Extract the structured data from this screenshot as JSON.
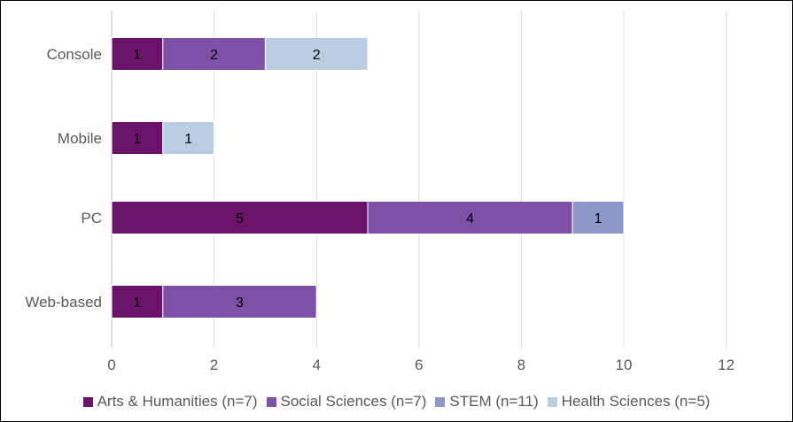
{
  "colors": {
    "Arts & Humanities (n=7)": "#6b126b",
    "Social Sciences (n=7)": "#7d52a6",
    "STEM (n=11)": "#8c96c8",
    "Health Sciences (n=5)": "#b9cde3"
  },
  "chart_data": {
    "type": "bar",
    "orientation": "horizontal",
    "stacked": true,
    "title": "",
    "categories": [
      "Console",
      "Mobile",
      "PC",
      "Web-based"
    ],
    "series": [
      {
        "name": "Arts & Humanities (n=7)",
        "values": [
          1,
          1,
          5,
          1
        ]
      },
      {
        "name": "Social Sciences (n=7)",
        "values": [
          2,
          0,
          4,
          3
        ]
      },
      {
        "name": "STEM (n=11)",
        "values": [
          0,
          0,
          1,
          0
        ]
      },
      {
        "name": "Health Sciences (n=5)",
        "values": [
          2,
          1,
          0,
          0
        ]
      }
    ],
    "xlim": [
      0,
      12
    ],
    "xticks": [
      "0",
      "2",
      "4",
      "6",
      "8",
      "10",
      "12"
    ],
    "grid": "vertical",
    "legend": "bottom"
  }
}
